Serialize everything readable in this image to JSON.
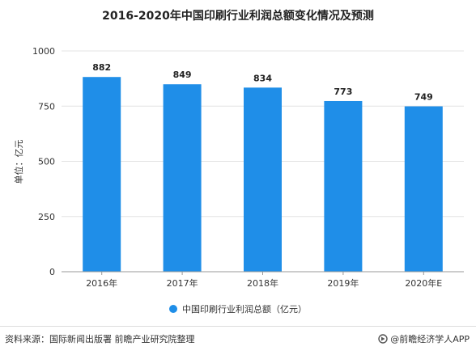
{
  "title": "2016-2020年中国印刷行业利润总额变化情况及预测",
  "colors": {
    "bar": "#1f8ee8",
    "grid": "#e3e3e3",
    "axis": "#999999",
    "text": "#333333"
  },
  "chart_data": {
    "type": "bar",
    "categories": [
      "2016年",
      "2017年",
      "2018年",
      "2019年",
      "2020年E"
    ],
    "series": [
      {
        "name": "中国印刷行业利润总额（亿元）",
        "values": [
          882,
          849,
          834,
          773,
          749
        ]
      }
    ],
    "data_labels": [
      "882",
      "849",
      "834",
      "773",
      "749"
    ],
    "ylabel": "单位：亿元",
    "ylim": [
      0,
      1000
    ],
    "yticks": [
      0,
      250,
      500,
      750,
      1000
    ],
    "ytick_labels": [
      "0",
      "250",
      "500",
      "750",
      "1000"
    ],
    "grid": true,
    "legend_position": "bottom"
  },
  "footer": {
    "source": "资料来源：国际新闻出版署 前瞻产业研究院整理",
    "brand": "@前瞻经济学人APP"
  }
}
